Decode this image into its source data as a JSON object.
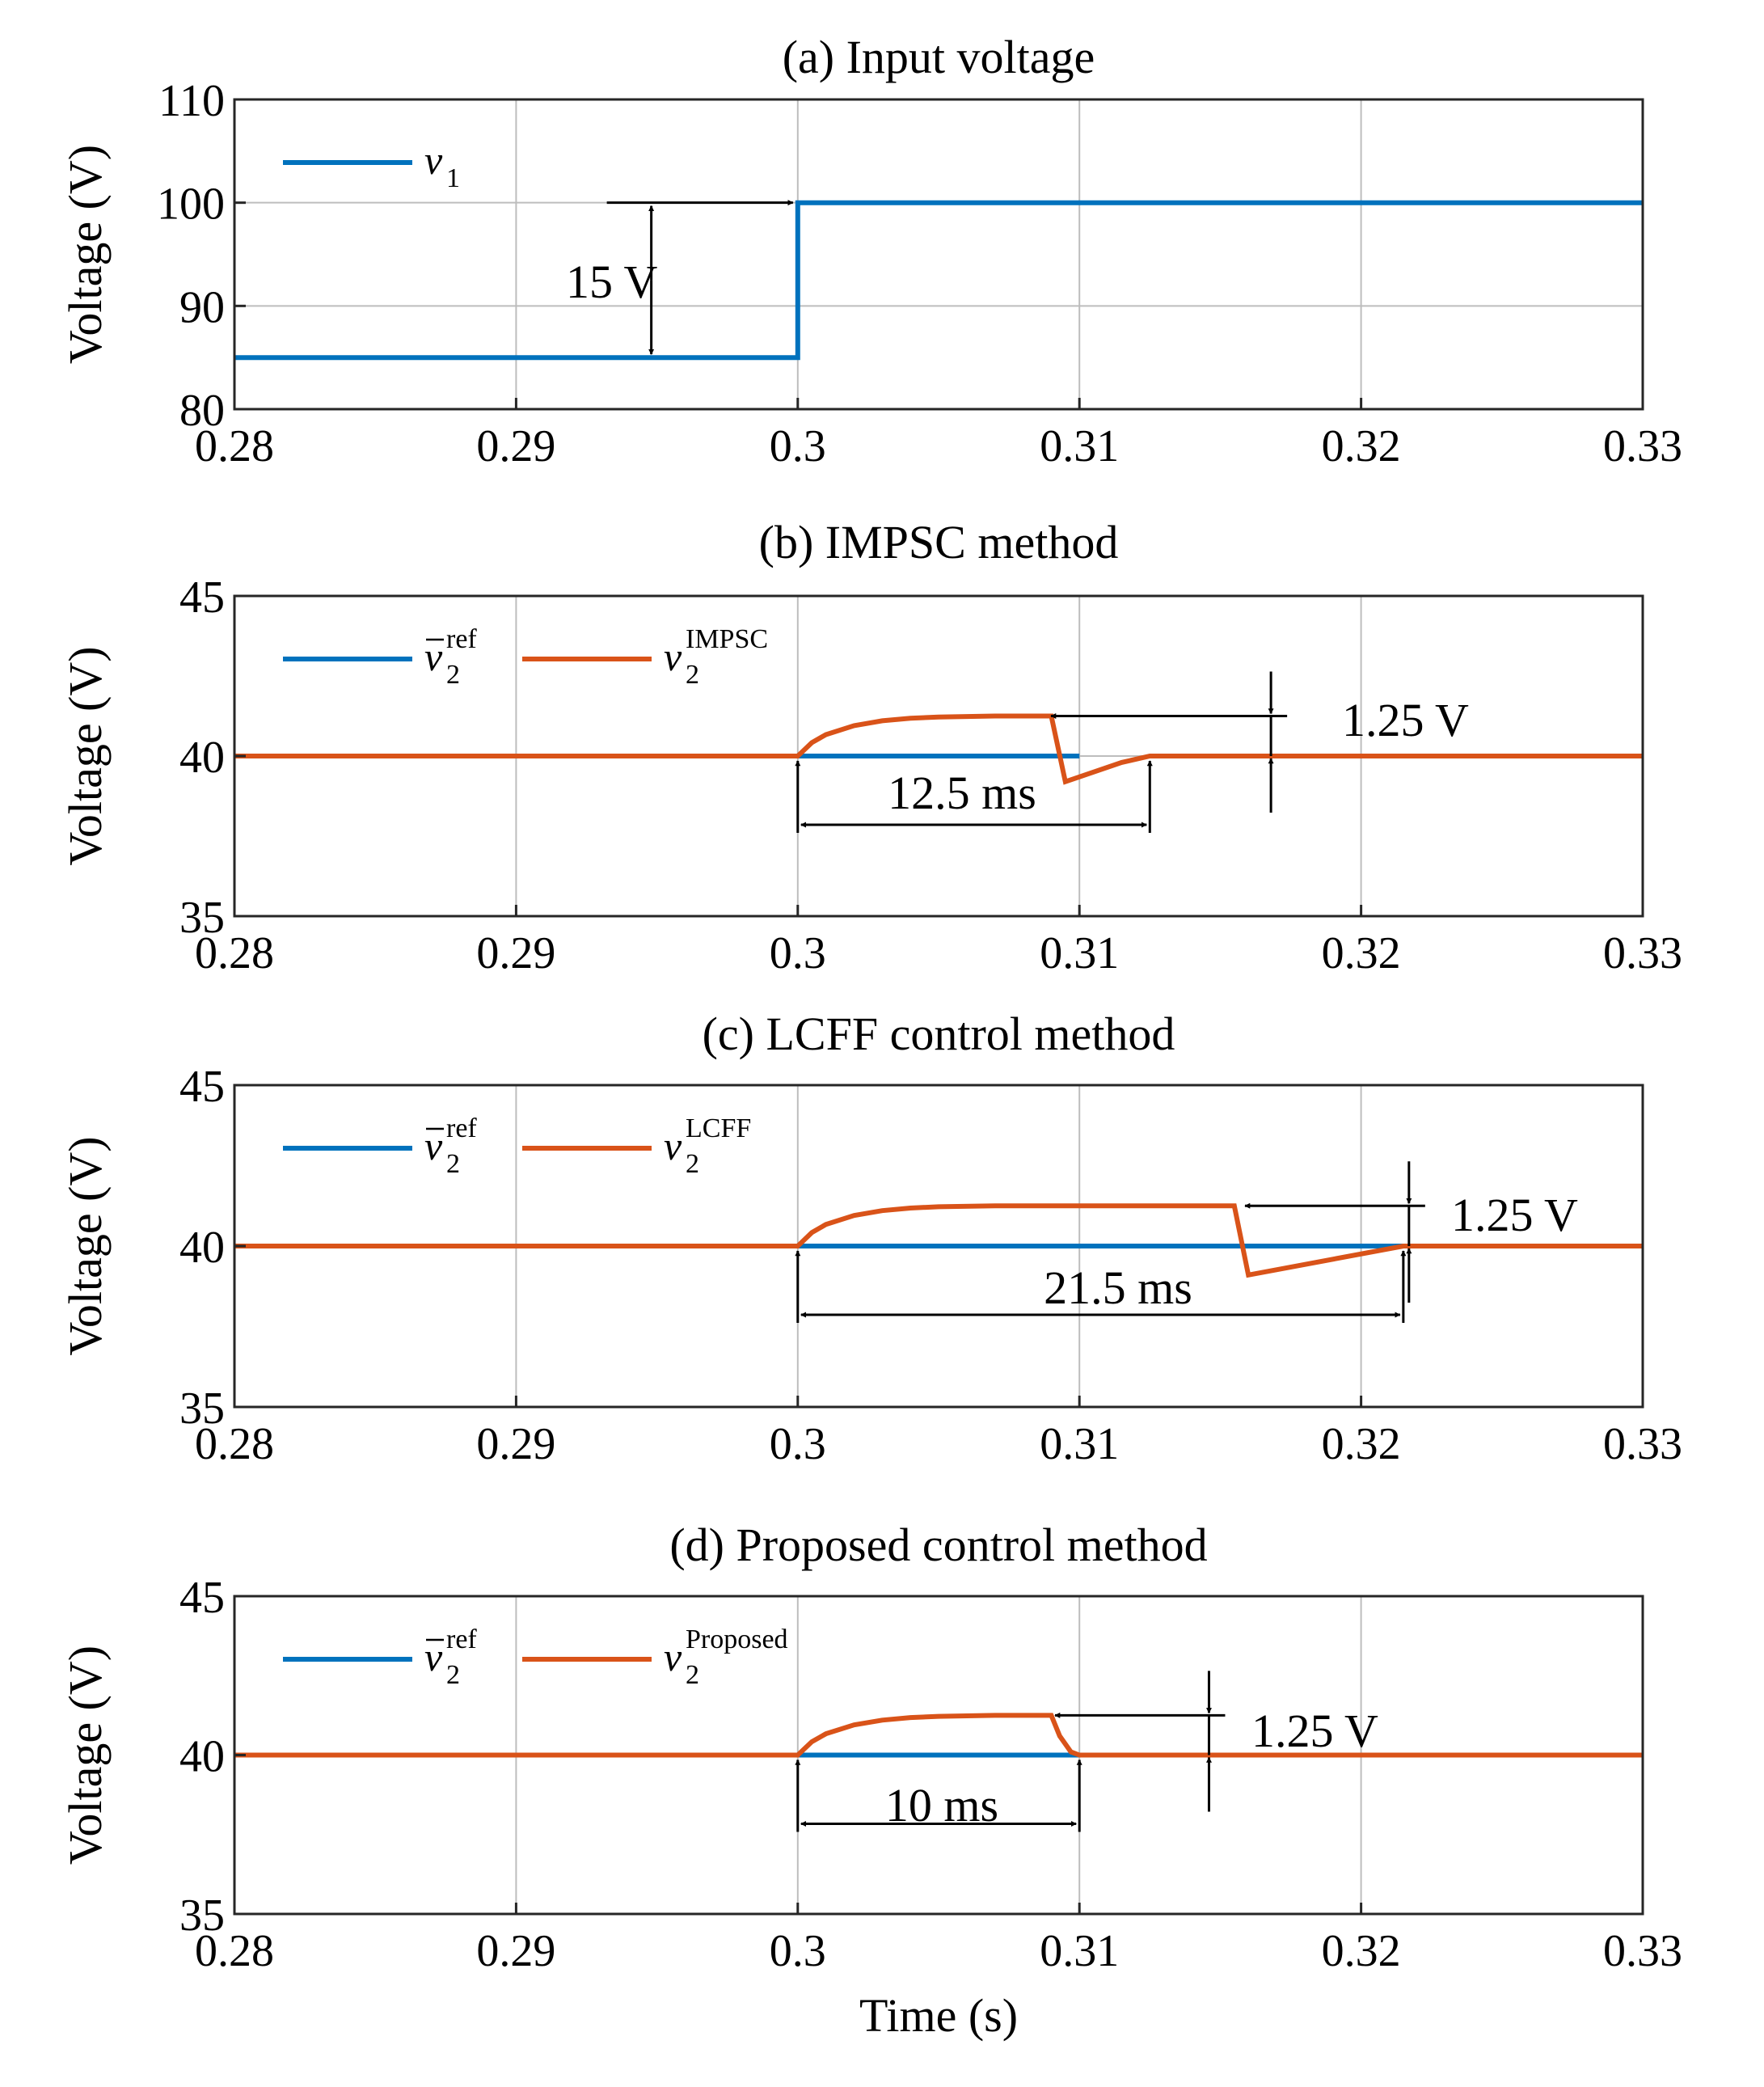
{
  "chart_data": [
    {
      "id": "a",
      "type": "line",
      "title": "(a) Input voltage",
      "xlabel": "",
      "ylabel": "Voltage (V)",
      "xlim": [
        0.28,
        0.33
      ],
      "ylim": [
        80,
        110
      ],
      "xticks": [
        "0.28",
        "0.29",
        "0.3",
        "0.31",
        "0.32",
        "0.33"
      ],
      "yticks": [
        "80",
        "90",
        "100",
        "110"
      ],
      "grid": true,
      "legend_position": "top-left",
      "colors": {
        "blue": "#0072BD",
        "orange": "#D95319"
      },
      "series": [
        {
          "name": "v1",
          "legend_main": "v",
          "legend_sub": "1",
          "legend_sup": "",
          "legend_bar": false,
          "color": "#0072BD",
          "x": [
            0.28,
            0.3,
            0.3,
            0.33
          ],
          "y": [
            85,
            85,
            100,
            100
          ]
        }
      ],
      "annotations": [
        {
          "label": "15 V",
          "kind": "dimension",
          "x": 0.2948,
          "y1": 85,
          "y2": 100
        }
      ]
    },
    {
      "id": "b",
      "type": "line",
      "title": "(b) IMPSC method",
      "xlabel": "",
      "ylabel": "Voltage (V)",
      "xlim": [
        0.28,
        0.33
      ],
      "ylim": [
        35,
        45
      ],
      "xticks": [
        "0.28",
        "0.29",
        "0.3",
        "0.31",
        "0.32",
        "0.33"
      ],
      "yticks": [
        "35",
        "40",
        "45"
      ],
      "grid": true,
      "legend_position": "top-left",
      "series": [
        {
          "name": "v2ref",
          "legend_main": "v",
          "legend_sub": "2",
          "legend_sup": "ref",
          "legend_bar": true,
          "color": "#0072BD",
          "x": [
            0.3,
            0.31
          ],
          "y": [
            40,
            40
          ]
        },
        {
          "name": "v2IMPSC",
          "legend_main": "v",
          "legend_sub": "2",
          "legend_sup": "IMPSC",
          "legend_bar": false,
          "color": "#D95319",
          "x": [
            0.28,
            0.3,
            0.3005,
            0.301,
            0.302,
            0.303,
            0.304,
            0.305,
            0.307,
            0.309,
            0.3095,
            0.3115,
            0.3125,
            0.33
          ],
          "y": [
            40,
            40,
            40.42,
            40.67,
            40.95,
            41.1,
            41.18,
            41.22,
            41.25,
            41.25,
            39.2,
            39.8,
            40,
            40
          ]
        }
      ],
      "annotations": [
        {
          "label": "12.5 ms",
          "kind": "interval",
          "x1": 0.3,
          "x2": 0.3125
        },
        {
          "label": "1.25 V",
          "kind": "dimension",
          "x": 0.3168,
          "y1": 40,
          "y2": 41.25
        }
      ]
    },
    {
      "id": "c",
      "type": "line",
      "title": "(c) LCFF control method",
      "xlabel": "",
      "ylabel": "Voltage (V)",
      "xlim": [
        0.28,
        0.33
      ],
      "ylim": [
        35,
        45
      ],
      "xticks": [
        "0.28",
        "0.29",
        "0.3",
        "0.31",
        "0.32",
        "0.33"
      ],
      "yticks": [
        "35",
        "40",
        "45"
      ],
      "grid": true,
      "legend_position": "top-left",
      "series": [
        {
          "name": "v2ref",
          "legend_main": "v",
          "legend_sub": "2",
          "legend_sup": "ref",
          "legend_bar": true,
          "color": "#0072BD",
          "x": [
            0.3,
            0.3215
          ],
          "y": [
            40,
            40
          ]
        },
        {
          "name": "v2LCFF",
          "legend_main": "v",
          "legend_sub": "2",
          "legend_sup": "LCFF",
          "legend_bar": false,
          "color": "#D95319",
          "x": [
            0.28,
            0.3,
            0.3005,
            0.301,
            0.302,
            0.303,
            0.304,
            0.305,
            0.307,
            0.3155,
            0.316,
            0.3215,
            0.33
          ],
          "y": [
            40,
            40,
            40.42,
            40.67,
            40.95,
            41.1,
            41.18,
            41.22,
            41.25,
            41.25,
            39.1,
            40,
            40
          ]
        }
      ],
      "annotations": [
        {
          "label": "21.5 ms",
          "kind": "interval",
          "x1": 0.3,
          "x2": 0.3215
        },
        {
          "label": "1.25 V",
          "kind": "dimension",
          "x": 0.3217,
          "y1": 40,
          "y2": 41.25
        }
      ]
    },
    {
      "id": "d",
      "type": "line",
      "title": "(d) Proposed control method",
      "xlabel": "Time (s)",
      "ylabel": "Voltage (V)",
      "xlim": [
        0.28,
        0.33
      ],
      "ylim": [
        35,
        45
      ],
      "xticks": [
        "0.28",
        "0.29",
        "0.3",
        "0.31",
        "0.32",
        "0.33"
      ],
      "yticks": [
        "35",
        "40",
        "45"
      ],
      "grid": true,
      "legend_position": "top-left",
      "series": [
        {
          "name": "v2ref",
          "legend_main": "v",
          "legend_sub": "2",
          "legend_sup": "ref",
          "legend_bar": true,
          "color": "#0072BD",
          "x": [
            0.3,
            0.31
          ],
          "y": [
            40,
            40
          ]
        },
        {
          "name": "v2Proposed",
          "legend_main": "v",
          "legend_sub": "2",
          "legend_sup": "Proposed",
          "legend_bar": false,
          "color": "#D95319",
          "x": [
            0.28,
            0.3,
            0.3005,
            0.301,
            0.302,
            0.303,
            0.304,
            0.305,
            0.307,
            0.309,
            0.3093,
            0.3097,
            0.31,
            0.33
          ],
          "y": [
            40,
            40,
            40.42,
            40.67,
            40.95,
            41.1,
            41.18,
            41.22,
            41.25,
            41.25,
            40.6,
            40.1,
            40,
            40
          ]
        }
      ],
      "annotations": [
        {
          "label": "10 ms",
          "kind": "interval",
          "x1": 0.3,
          "x2": 0.31
        },
        {
          "label": "1.25 V",
          "kind": "dimension",
          "x": 0.3146,
          "y1": 40,
          "y2": 41.25
        }
      ]
    }
  ]
}
